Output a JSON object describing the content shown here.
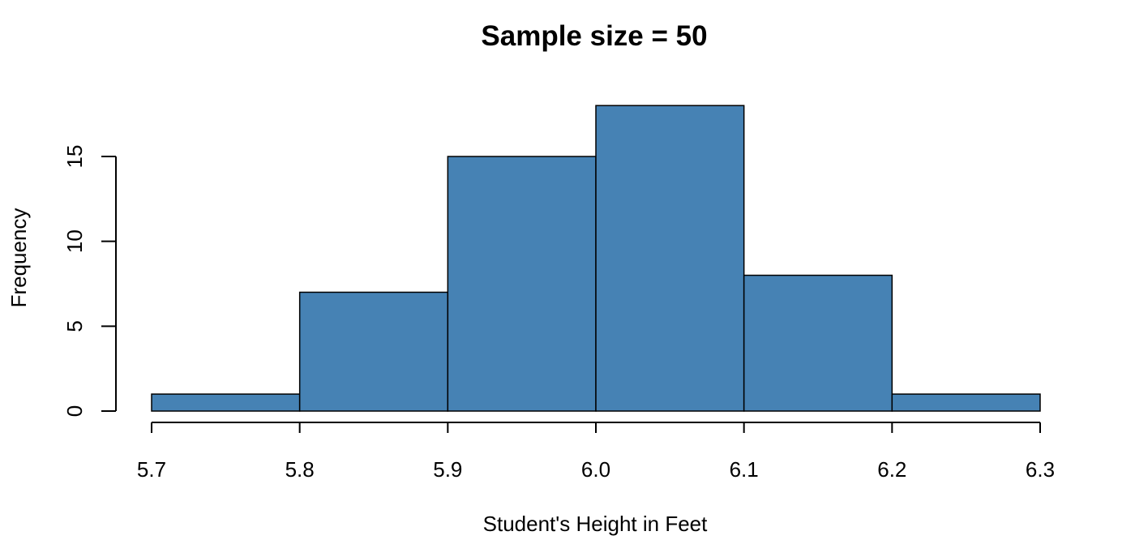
{
  "chart_data": {
    "type": "bar",
    "subtype": "histogram",
    "title": "Sample size = 50",
    "xlabel": "Student's Height in Feet",
    "ylabel": "Frequency",
    "bin_edges": [
      5.7,
      5.8,
      5.9,
      6.0,
      6.1,
      6.2,
      6.3
    ],
    "values": [
      1,
      7,
      15,
      18,
      8,
      1
    ],
    "xlim": [
      5.7,
      6.3
    ],
    "ylim": [
      0,
      18
    ],
    "x_ticks": [
      5.7,
      5.8,
      5.9,
      6.0,
      6.1,
      6.2,
      6.3
    ],
    "x_tick_labels": [
      "5.7",
      "5.8",
      "5.9",
      "6.0",
      "6.1",
      "6.2",
      "6.3"
    ],
    "y_ticks": [
      0,
      5,
      10,
      15
    ],
    "y_tick_labels": [
      "0",
      "5",
      "10",
      "15"
    ],
    "bar_color": "#4682b4",
    "grid": false,
    "legend": "none"
  }
}
